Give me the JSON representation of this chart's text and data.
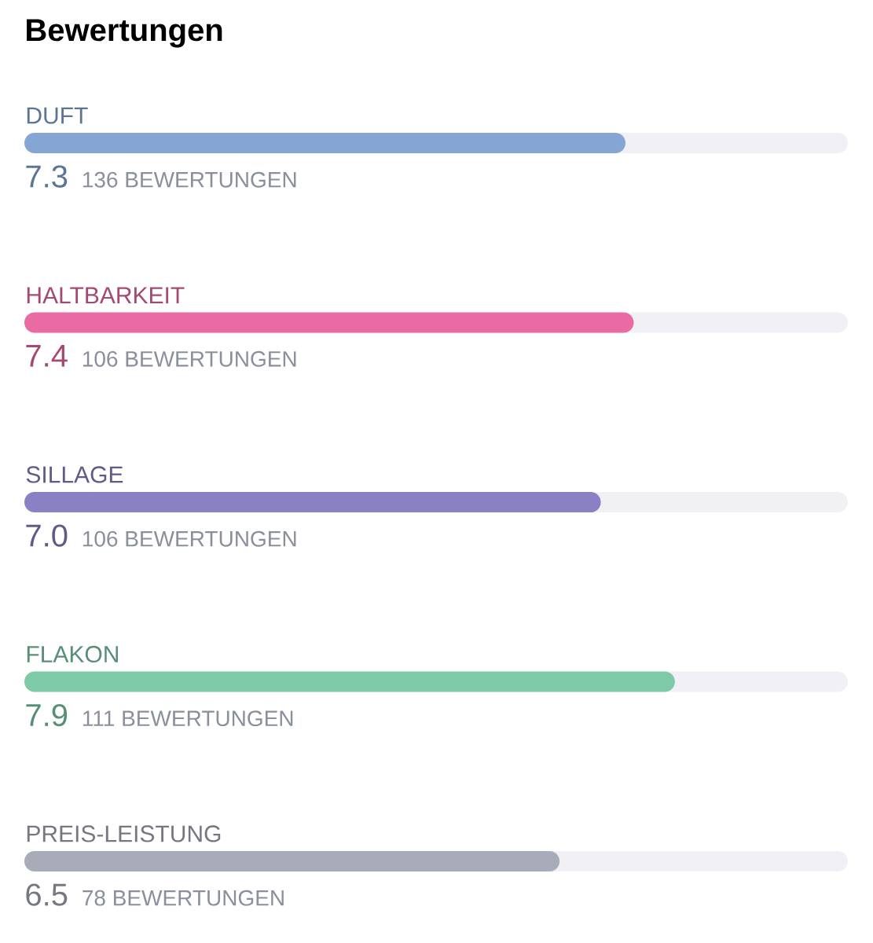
{
  "chart_data": {
    "type": "bar",
    "orientation": "horizontal",
    "title": "Bewertungen",
    "categories": [
      "DUFT",
      "HALTBARKEIT",
      "SILLAGE",
      "FLAKON",
      "PREIS-LEISTUNG"
    ],
    "values": [
      7.3,
      7.4,
      7.0,
      7.9,
      6.5
    ],
    "colors": [
      "#85a6d4",
      "#ea6aa3",
      "#8a80c4",
      "#7ecaa8",
      "#a8abb8"
    ],
    "value_labels": [
      "7.3",
      "7.4",
      "7.0",
      "7.9",
      "6.5"
    ],
    "xlim": [
      0,
      10
    ],
    "tick_labels": false,
    "annotations": [
      "136 BEWERTUNGEN",
      "106 BEWERTUNGEN",
      "106 BEWERTUNGEN",
      "111 BEWERTUNGEN",
      "78 BEWERTUNGEN"
    ]
  }
}
